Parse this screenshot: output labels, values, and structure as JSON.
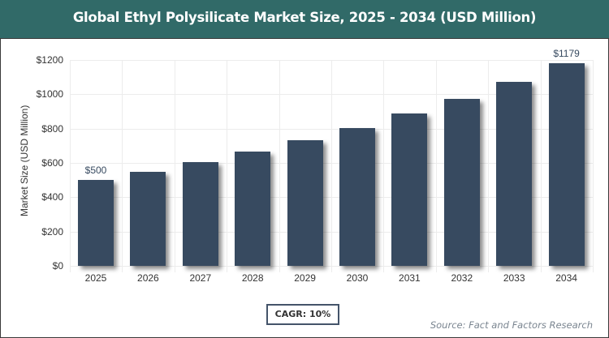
{
  "header": {
    "title": "Global Ethyl Polysilicate Market Size, 2025 - 2034 (USD Million)"
  },
  "axes": {
    "ylabel": "Market Size (USD Million)",
    "yticks": [
      "$1200",
      "$1000",
      "$800",
      "$600",
      "$400",
      "$200",
      "$0"
    ],
    "xticks": [
      "2025",
      "2026",
      "2027",
      "2028",
      "2029",
      "2030",
      "2031",
      "2032",
      "2033",
      "2034"
    ]
  },
  "labels": {
    "first": "$500",
    "last": "$1179"
  },
  "footer": {
    "cagr": "CAGR: 10%",
    "source": "Source: Fact and Factors Research"
  },
  "colors": {
    "header_bg": "#316a68",
    "bar": "#374a60"
  },
  "chart_data": {
    "type": "bar",
    "title": "Global Ethyl Polysilicate Market Size, 2025 - 2034 (USD Million)",
    "xlabel": "",
    "ylabel": "Market Size (USD Million)",
    "categories": [
      "2025",
      "2026",
      "2027",
      "2028",
      "2029",
      "2030",
      "2031",
      "2032",
      "2033",
      "2034"
    ],
    "values": [
      500,
      550,
      605,
      665,
      732,
      805,
      886,
      974,
      1072,
      1179
    ],
    "data_labels": {
      "2025": "$500",
      "2034": "$1179"
    },
    "ylim": [
      0,
      1200
    ],
    "yticks": [
      0,
      200,
      400,
      600,
      800,
      1000,
      1200
    ],
    "grid": true,
    "legend": null,
    "annotations": [
      "CAGR: 10%",
      "Source: Fact and Factors Research"
    ]
  }
}
